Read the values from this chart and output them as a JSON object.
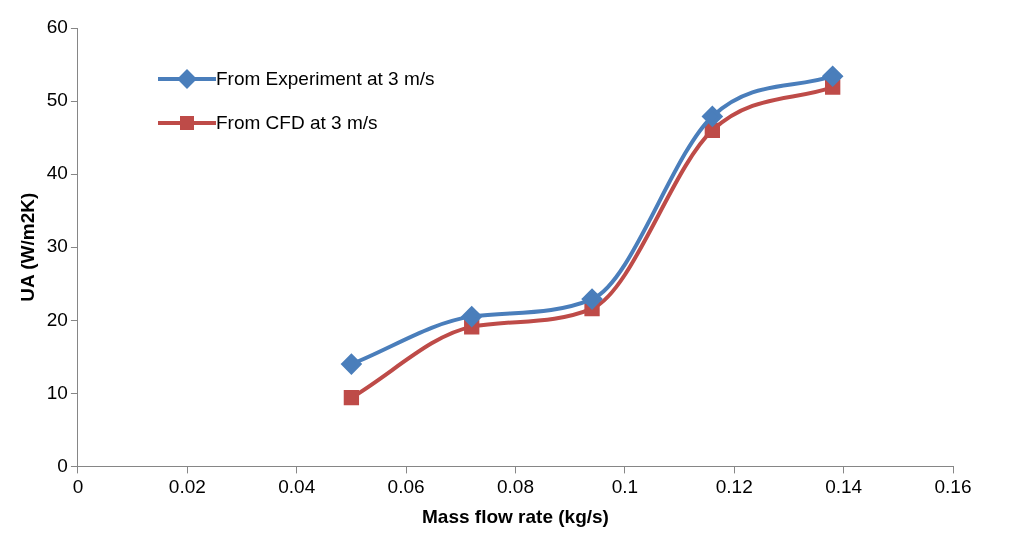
{
  "chart_data": {
    "type": "line",
    "xlabel": "Mass flow rate (kg/s)",
    "ylabel": "UA (W/m2K)",
    "xlim": [
      0,
      0.16
    ],
    "xticks": [
      0,
      0.02,
      0.04,
      0.06,
      0.08,
      0.1,
      0.12,
      0.14,
      0.16
    ],
    "ylim": [
      0,
      60
    ],
    "yticks": [
      0,
      10,
      20,
      30,
      40,
      50,
      60
    ],
    "x": [
      0.05,
      0.072,
      0.094,
      0.116,
      0.138
    ],
    "series": [
      {
        "name": "From Experiment at 3 m/s",
        "color": "#4a7ebb",
        "marker": "diamond",
        "values": [
          14.0,
          20.5,
          22.9,
          47.9,
          53.4
        ]
      },
      {
        "name": "From CFD at 3 m/s",
        "color": "#be4b48",
        "marker": "square",
        "values": [
          9.4,
          19.1,
          21.6,
          46.0,
          51.9
        ]
      }
    ],
    "grid": false,
    "legend": "top left",
    "line_style": "solid"
  }
}
